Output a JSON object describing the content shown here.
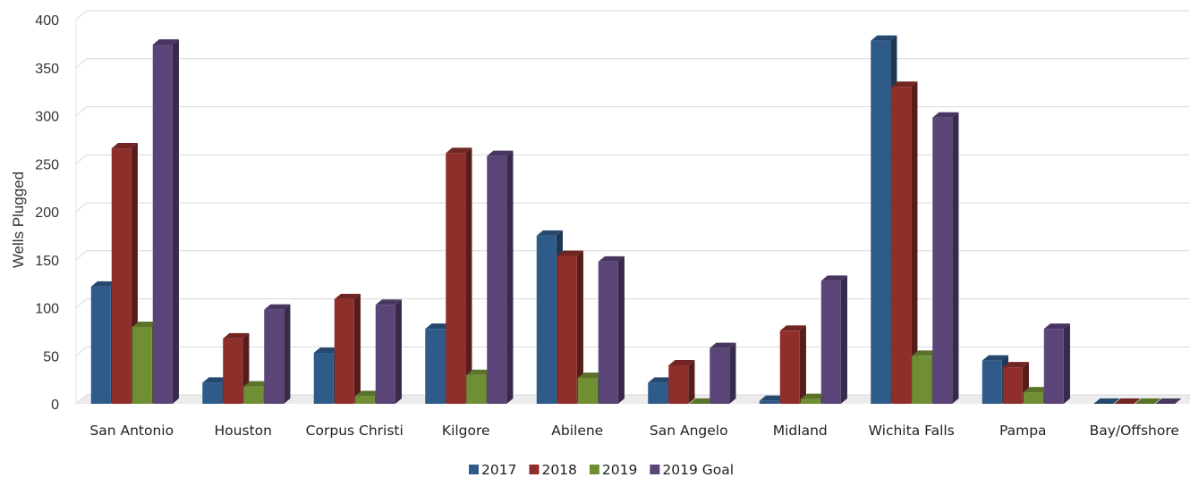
{
  "chart_data": {
    "type": "bar",
    "title": "",
    "xlabel": "",
    "ylabel": "Wells Plugged",
    "ylim": [
      0,
      400
    ],
    "yticks": [
      0,
      50,
      100,
      150,
      200,
      250,
      300,
      350,
      400
    ],
    "grid": true,
    "legend_position": "bottom",
    "categories": [
      "San Antonio",
      "Houston",
      "Corpus Christi",
      "Kilgore",
      "Abilene",
      "San Angelo",
      "Midland",
      "Wichita Falls",
      "Pampa",
      "Bay/Offshore"
    ],
    "series": [
      {
        "name": "2017",
        "color": "#2e5b8a",
        "values": [
          122,
          22,
          53,
          78,
          175,
          22,
          3,
          378,
          45,
          0
        ]
      },
      {
        "name": "2018",
        "color": "#8e2f2c",
        "values": [
          266,
          68,
          109,
          261,
          154,
          40,
          76,
          330,
          38,
          0
        ]
      },
      {
        "name": "2019",
        "color": "#708f34",
        "values": [
          80,
          18,
          8,
          30,
          27,
          0,
          5,
          50,
          12,
          0
        ]
      },
      {
        "name": "2019 Goal",
        "color": "#5b4478",
        "values": [
          374,
          98,
          103,
          258,
          148,
          58,
          128,
          298,
          78,
          0
        ]
      }
    ]
  }
}
